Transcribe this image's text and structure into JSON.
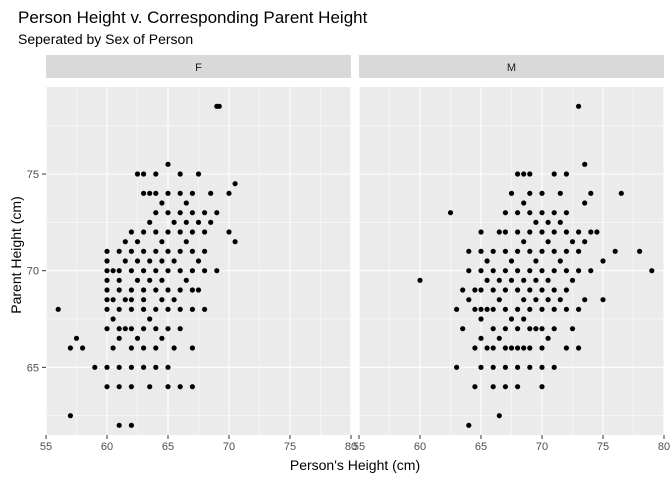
{
  "chart_data": {
    "type": "scatter",
    "title": "Person Height v. Corresponding Parent Height",
    "subtitle": "Seperated by Sex of Person",
    "xlabel": "Person's Height (cm)",
    "ylabel": "Parent Height (cm)",
    "xlim": [
      55,
      80
    ],
    "ylim": [
      61.5,
      79.5
    ],
    "x_ticks": [
      55,
      60,
      65,
      70,
      75,
      80
    ],
    "y_ticks": [
      65,
      70,
      75
    ],
    "grid": true,
    "facets": [
      {
        "label": "F",
        "points": [
          [
            56.0,
            68.0
          ],
          [
            57.0,
            62.5
          ],
          [
            57.0,
            66.0
          ],
          [
            57.5,
            66.5
          ],
          [
            58.0,
            66.0
          ],
          [
            59.0,
            65.0
          ],
          [
            60.0,
            64.0
          ],
          [
            60.0,
            65.0
          ],
          [
            60.0,
            67.0
          ],
          [
            60.0,
            68.0
          ],
          [
            60.0,
            68.5
          ],
          [
            60.0,
            69.0
          ],
          [
            60.0,
            69.5
          ],
          [
            60.0,
            70.0
          ],
          [
            60.0,
            70.5
          ],
          [
            60.0,
            71.0
          ],
          [
            60.5,
            66.0
          ],
          [
            60.5,
            67.5
          ],
          [
            60.5,
            68.5
          ],
          [
            60.5,
            70.0
          ],
          [
            61.0,
            62.0
          ],
          [
            61.0,
            64.0
          ],
          [
            61.0,
            65.0
          ],
          [
            61.0,
            66.5
          ],
          [
            61.0,
            67.0
          ],
          [
            61.0,
            68.0
          ],
          [
            61.0,
            69.0
          ],
          [
            61.0,
            69.5
          ],
          [
            61.0,
            70.0
          ],
          [
            61.0,
            71.0
          ],
          [
            61.5,
            67.0
          ],
          [
            61.5,
            68.5
          ],
          [
            61.5,
            70.5
          ],
          [
            61.5,
            71.5
          ],
          [
            62.0,
            62.0
          ],
          [
            62.0,
            64.0
          ],
          [
            62.0,
            65.0
          ],
          [
            62.0,
            66.0
          ],
          [
            62.0,
            67.0
          ],
          [
            62.0,
            68.0
          ],
          [
            62.0,
            68.5
          ],
          [
            62.0,
            69.0
          ],
          [
            62.0,
            70.0
          ],
          [
            62.0,
            71.0
          ],
          [
            62.0,
            72.0
          ],
          [
            62.5,
            66.5
          ],
          [
            62.5,
            69.5
          ],
          [
            62.5,
            70.5
          ],
          [
            62.5,
            71.5
          ],
          [
            62.5,
            75.0
          ],
          [
            63.0,
            65.0
          ],
          [
            63.0,
            66.0
          ],
          [
            63.0,
            67.0
          ],
          [
            63.0,
            68.0
          ],
          [
            63.0,
            68.5
          ],
          [
            63.0,
            69.0
          ],
          [
            63.0,
            70.0
          ],
          [
            63.0,
            71.0
          ],
          [
            63.0,
            72.0
          ],
          [
            63.0,
            74.0
          ],
          [
            63.0,
            75.0
          ],
          [
            63.5,
            64.0
          ],
          [
            63.5,
            67.5
          ],
          [
            63.5,
            69.5
          ],
          [
            63.5,
            70.5
          ],
          [
            63.5,
            72.5
          ],
          [
            63.5,
            74.0
          ],
          [
            64.0,
            65.0
          ],
          [
            64.0,
            66.0
          ],
          [
            64.0,
            67.0
          ],
          [
            64.0,
            68.0
          ],
          [
            64.0,
            69.0
          ],
          [
            64.0,
            70.0
          ],
          [
            64.0,
            71.0
          ],
          [
            64.0,
            72.0
          ],
          [
            64.0,
            73.0
          ],
          [
            64.0,
            74.0
          ],
          [
            64.0,
            75.0
          ],
          [
            64.5,
            66.5
          ],
          [
            64.5,
            68.5
          ],
          [
            64.5,
            69.5
          ],
          [
            64.5,
            70.5
          ],
          [
            64.5,
            71.5
          ],
          [
            64.5,
            73.5
          ],
          [
            65.0,
            64.0
          ],
          [
            65.0,
            65.0
          ],
          [
            65.0,
            67.0
          ],
          [
            65.0,
            68.0
          ],
          [
            65.0,
            69.0
          ],
          [
            65.0,
            70.0
          ],
          [
            65.0,
            71.0
          ],
          [
            65.0,
            72.0
          ],
          [
            65.0,
            73.0
          ],
          [
            65.0,
            74.0
          ],
          [
            65.0,
            75.5
          ],
          [
            65.5,
            66.0
          ],
          [
            65.5,
            68.5
          ],
          [
            65.5,
            70.5
          ],
          [
            65.5,
            72.5
          ],
          [
            66.0,
            64.0
          ],
          [
            66.0,
            67.0
          ],
          [
            66.0,
            68.0
          ],
          [
            66.0,
            69.0
          ],
          [
            66.0,
            70.0
          ],
          [
            66.0,
            71.0
          ],
          [
            66.0,
            72.0
          ],
          [
            66.0,
            73.0
          ],
          [
            66.0,
            74.0
          ],
          [
            66.0,
            75.0
          ],
          [
            66.5,
            69.5
          ],
          [
            66.5,
            71.5
          ],
          [
            66.5,
            72.5
          ],
          [
            66.5,
            73.5
          ],
          [
            67.0,
            64.0
          ],
          [
            67.0,
            66.0
          ],
          [
            67.0,
            68.0
          ],
          [
            67.0,
            69.0
          ],
          [
            67.0,
            70.0
          ],
          [
            67.0,
            71.0
          ],
          [
            67.0,
            72.0
          ],
          [
            67.0,
            73.0
          ],
          [
            67.0,
            74.0
          ],
          [
            67.5,
            69.0
          ],
          [
            67.5,
            70.5
          ],
          [
            67.5,
            72.5
          ],
          [
            67.5,
            75.0
          ],
          [
            68.0,
            68.0
          ],
          [
            68.0,
            70.0
          ],
          [
            68.0,
            71.0
          ],
          [
            68.0,
            72.0
          ],
          [
            68.0,
            73.0
          ],
          [
            68.5,
            72.5
          ],
          [
            68.5,
            74.0
          ],
          [
            69.0,
            78.5
          ],
          [
            69.0,
            70.0
          ],
          [
            69.0,
            73.0
          ],
          [
            69.2,
            78.5
          ],
          [
            70.0,
            72.0
          ],
          [
            70.0,
            74.0
          ],
          [
            70.5,
            71.5
          ],
          [
            70.5,
            74.5
          ]
        ]
      },
      {
        "label": "M",
        "points": [
          [
            60.0,
            69.5
          ],
          [
            62.5,
            73.0
          ],
          [
            63.0,
            65.0
          ],
          [
            63.0,
            68.0
          ],
          [
            63.5,
            67.0
          ],
          [
            63.5,
            69.0
          ],
          [
            64.0,
            62.0
          ],
          [
            64.0,
            68.5
          ],
          [
            64.0,
            70.0
          ],
          [
            64.0,
            71.0
          ],
          [
            64.5,
            64.0
          ],
          [
            64.5,
            66.0
          ],
          [
            64.5,
            68.0
          ],
          [
            64.5,
            69.0
          ],
          [
            65.0,
            65.0
          ],
          [
            65.0,
            66.5
          ],
          [
            65.0,
            67.5
          ],
          [
            65.0,
            68.0
          ],
          [
            65.0,
            69.0
          ],
          [
            65.0,
            70.0
          ],
          [
            65.0,
            71.0
          ],
          [
            65.0,
            72.0
          ],
          [
            65.5,
            66.0
          ],
          [
            65.5,
            68.0
          ],
          [
            65.5,
            69.5
          ],
          [
            65.5,
            70.5
          ],
          [
            66.0,
            64.0
          ],
          [
            66.0,
            65.0
          ],
          [
            66.0,
            66.0
          ],
          [
            66.0,
            67.0
          ],
          [
            66.0,
            68.0
          ],
          [
            66.0,
            69.0
          ],
          [
            66.0,
            70.0
          ],
          [
            66.0,
            71.0
          ],
          [
            66.5,
            62.5
          ],
          [
            66.5,
            66.5
          ],
          [
            66.5,
            68.5
          ],
          [
            66.5,
            69.5
          ],
          [
            66.5,
            72.0
          ],
          [
            67.0,
            64.0
          ],
          [
            67.0,
            65.0
          ],
          [
            67.0,
            66.0
          ],
          [
            67.0,
            67.0
          ],
          [
            67.0,
            68.0
          ],
          [
            67.0,
            69.0
          ],
          [
            67.0,
            70.0
          ],
          [
            67.0,
            71.0
          ],
          [
            67.0,
            72.0
          ],
          [
            67.0,
            73.0
          ],
          [
            67.5,
            66.0
          ],
          [
            67.5,
            67.5
          ],
          [
            67.5,
            69.5
          ],
          [
            67.5,
            70.5
          ],
          [
            67.5,
            74.0
          ],
          [
            68.0,
            64.0
          ],
          [
            68.0,
            65.0
          ],
          [
            68.0,
            66.0
          ],
          [
            68.0,
            67.0
          ],
          [
            68.0,
            68.0
          ],
          [
            68.0,
            69.0
          ],
          [
            68.0,
            70.0
          ],
          [
            68.0,
            71.0
          ],
          [
            68.0,
            72.0
          ],
          [
            68.0,
            73.0
          ],
          [
            68.0,
            75.0
          ],
          [
            68.5,
            66.0
          ],
          [
            68.5,
            67.5
          ],
          [
            68.5,
            68.5
          ],
          [
            68.5,
            69.5
          ],
          [
            68.5,
            71.5
          ],
          [
            68.5,
            73.5
          ],
          [
            68.5,
            75.0
          ],
          [
            69.0,
            65.0
          ],
          [
            69.0,
            66.0
          ],
          [
            69.0,
            67.0
          ],
          [
            69.0,
            68.0
          ],
          [
            69.0,
            69.0
          ],
          [
            69.0,
            70.0
          ],
          [
            69.0,
            71.0
          ],
          [
            69.0,
            72.0
          ],
          [
            69.0,
            73.0
          ],
          [
            69.0,
            74.0
          ],
          [
            69.0,
            75.0
          ],
          [
            69.5,
            67.0
          ],
          [
            69.5,
            68.5
          ],
          [
            69.5,
            69.5
          ],
          [
            69.5,
            70.5
          ],
          [
            69.5,
            72.5
          ],
          [
            70.0,
            64.0
          ],
          [
            70.0,
            65.0
          ],
          [
            70.0,
            66.0
          ],
          [
            70.0,
            67.0
          ],
          [
            70.0,
            68.0
          ],
          [
            70.0,
            69.0
          ],
          [
            70.0,
            70.0
          ],
          [
            70.0,
            71.0
          ],
          [
            70.0,
            72.0
          ],
          [
            70.0,
            73.0
          ],
          [
            70.0,
            74.0
          ],
          [
            70.5,
            66.5
          ],
          [
            70.5,
            68.5
          ],
          [
            70.5,
            69.5
          ],
          [
            70.5,
            71.5
          ],
          [
            70.5,
            72.5
          ],
          [
            71.0,
            65.0
          ],
          [
            71.0,
            67.0
          ],
          [
            71.0,
            68.0
          ],
          [
            71.0,
            69.0
          ],
          [
            71.0,
            70.0
          ],
          [
            71.0,
            71.0
          ],
          [
            71.0,
            72.0
          ],
          [
            71.0,
            73.0
          ],
          [
            71.0,
            75.0
          ],
          [
            71.5,
            68.5
          ],
          [
            71.5,
            70.5
          ],
          [
            71.5,
            72.5
          ],
          [
            71.5,
            74.0
          ],
          [
            72.0,
            66.0
          ],
          [
            72.0,
            68.0
          ],
          [
            72.0,
            69.0
          ],
          [
            72.0,
            70.0
          ],
          [
            72.0,
            71.0
          ],
          [
            72.0,
            72.0
          ],
          [
            72.0,
            73.0
          ],
          [
            72.0,
            75.0
          ],
          [
            72.5,
            67.0
          ],
          [
            72.5,
            69.5
          ],
          [
            72.5,
            71.5
          ],
          [
            73.0,
            66.0
          ],
          [
            73.0,
            68.0
          ],
          [
            73.0,
            70.0
          ],
          [
            73.0,
            71.0
          ],
          [
            73.0,
            72.0
          ],
          [
            73.0,
            78.5
          ],
          [
            73.5,
            68.5
          ],
          [
            73.5,
            71.5
          ],
          [
            73.5,
            73.5
          ],
          [
            73.5,
            75.5
          ],
          [
            74.0,
            70.0
          ],
          [
            74.0,
            72.0
          ],
          [
            74.0,
            74.0
          ],
          [
            74.5,
            72.0
          ],
          [
            75.0,
            68.5
          ],
          [
            75.0,
            70.5
          ],
          [
            76.0,
            71.0
          ],
          [
            76.5,
            74.0
          ],
          [
            78.0,
            71.0
          ],
          [
            79.0,
            70.0
          ]
        ]
      }
    ]
  }
}
